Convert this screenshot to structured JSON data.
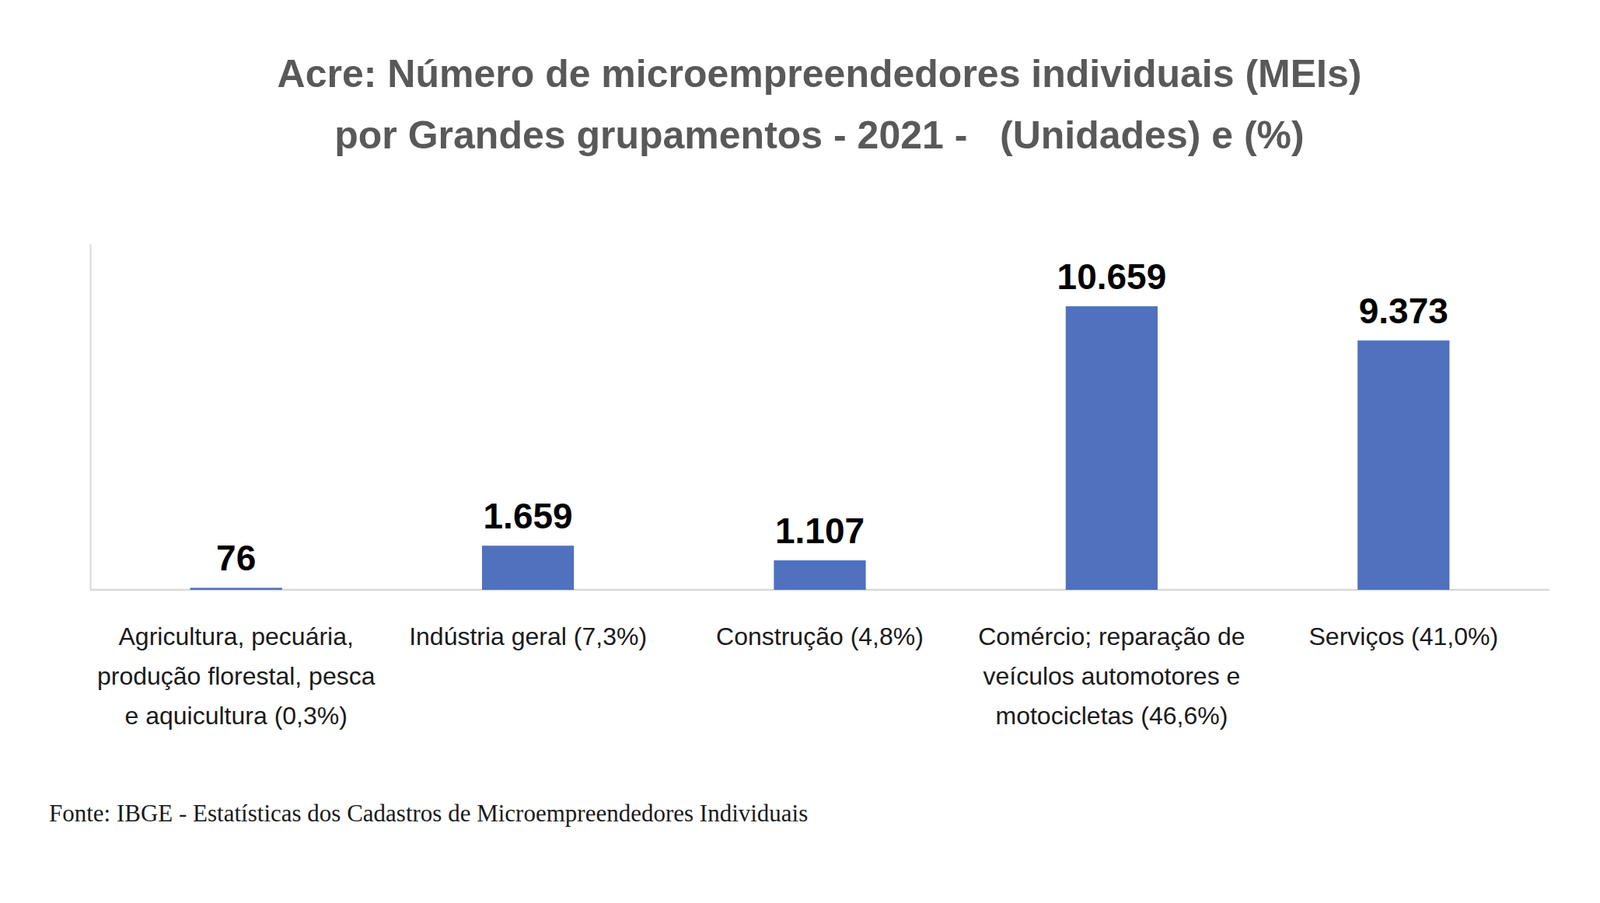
{
  "chart_data": {
    "type": "bar",
    "title": "Acre: Número de microempreendedores individuais (MEIs) por Grandes grupamentos - 2021 -   (Unidades) e (%)",
    "categories": [
      "Agricultura, pecuária, produção florestal, pesca e aquicultura (0,3%)",
      "Indústria geral (7,3%)",
      "Construção (4,8%)",
      "Comércio; reparação de veículos automotores e motocicletas (46,6%)",
      "Serviços (41,0%)"
    ],
    "values": [
      76,
      1659,
      1107,
      10659,
      9373
    ],
    "value_labels": [
      "76",
      "1.659",
      "1.107",
      "10.659",
      "9.373"
    ],
    "color": "#4f71be",
    "ylim": [
      0,
      13000
    ],
    "yticks": [
      0
    ],
    "grid": false,
    "data_labels": true,
    "tick_labels": false,
    "source": "Fonte: IBGE - Estatísticas dos Cadastros de Microempreendedores Individuais"
  }
}
